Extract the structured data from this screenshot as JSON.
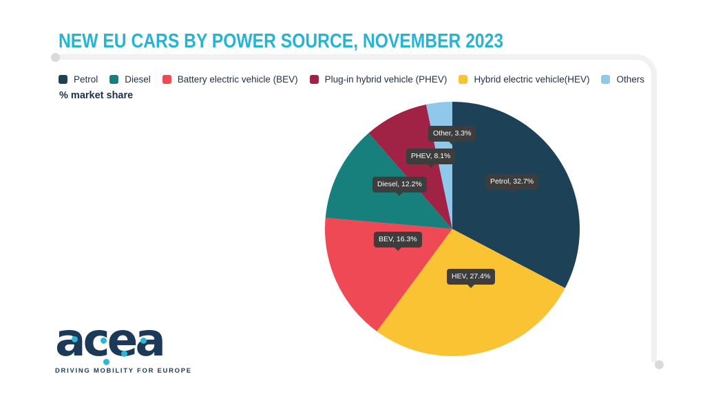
{
  "chart_data": {
    "type": "pie",
    "title": "NEW EU CARS BY POWER SOURCE, NOVEMBER 2023",
    "unit_label": "% market share",
    "start_angle_deg": 0,
    "direction": "clockwise",
    "legend_position": "top",
    "slices": [
      {
        "label": "Petrol",
        "value": 32.7,
        "color": "#1d4157",
        "tooltip": "Petrol, 32.7%"
      },
      {
        "label": "Hybrid electric vehicle(HEV)",
        "value": 27.4,
        "color": "#f9c333",
        "tooltip": "HEV, 27.4%"
      },
      {
        "label": "Battery electric vehicle (BEV)",
        "value": 16.3,
        "color": "#ef4956",
        "tooltip": "BEV, 16.3%"
      },
      {
        "label": "Diesel",
        "value": 12.2,
        "color": "#17807d",
        "tooltip": "Diesel, 12.2%"
      },
      {
        "label": "Plug-in hybrid vehicle (PHEV)",
        "value": 8.1,
        "color": "#a02345",
        "tooltip": "PHEV, 8.1%"
      },
      {
        "label": "Others",
        "value": 3.3,
        "color": "#90c8ec",
        "tooltip": "Other, 3.3%"
      }
    ]
  },
  "legend": {
    "items": [
      {
        "label": "Petrol",
        "color": "#1d4157"
      },
      {
        "label": "Diesel",
        "color": "#17807d"
      },
      {
        "label": "Battery electric vehicle (BEV)",
        "color": "#ef4956"
      },
      {
        "label": "Plug-in hybrid vehicle (PHEV)",
        "color": "#a02345"
      },
      {
        "label": "Hybrid electric vehicle(HEV)",
        "color": "#f9c333"
      },
      {
        "label": "Others",
        "color": "#90c8ec"
      }
    ]
  },
  "footer": {
    "logo_text": "acea",
    "tagline": "DRIVING MOBILITY FOR EUROPE"
  },
  "colors": {
    "title": "#25b5d2",
    "legend_text": "#1b304b",
    "tooltip_bg": "#3d3d3d",
    "frame_line": "#f1f1f1",
    "logo_navy": "#1c3a57",
    "logo_cyan": "#2ab7d8"
  }
}
